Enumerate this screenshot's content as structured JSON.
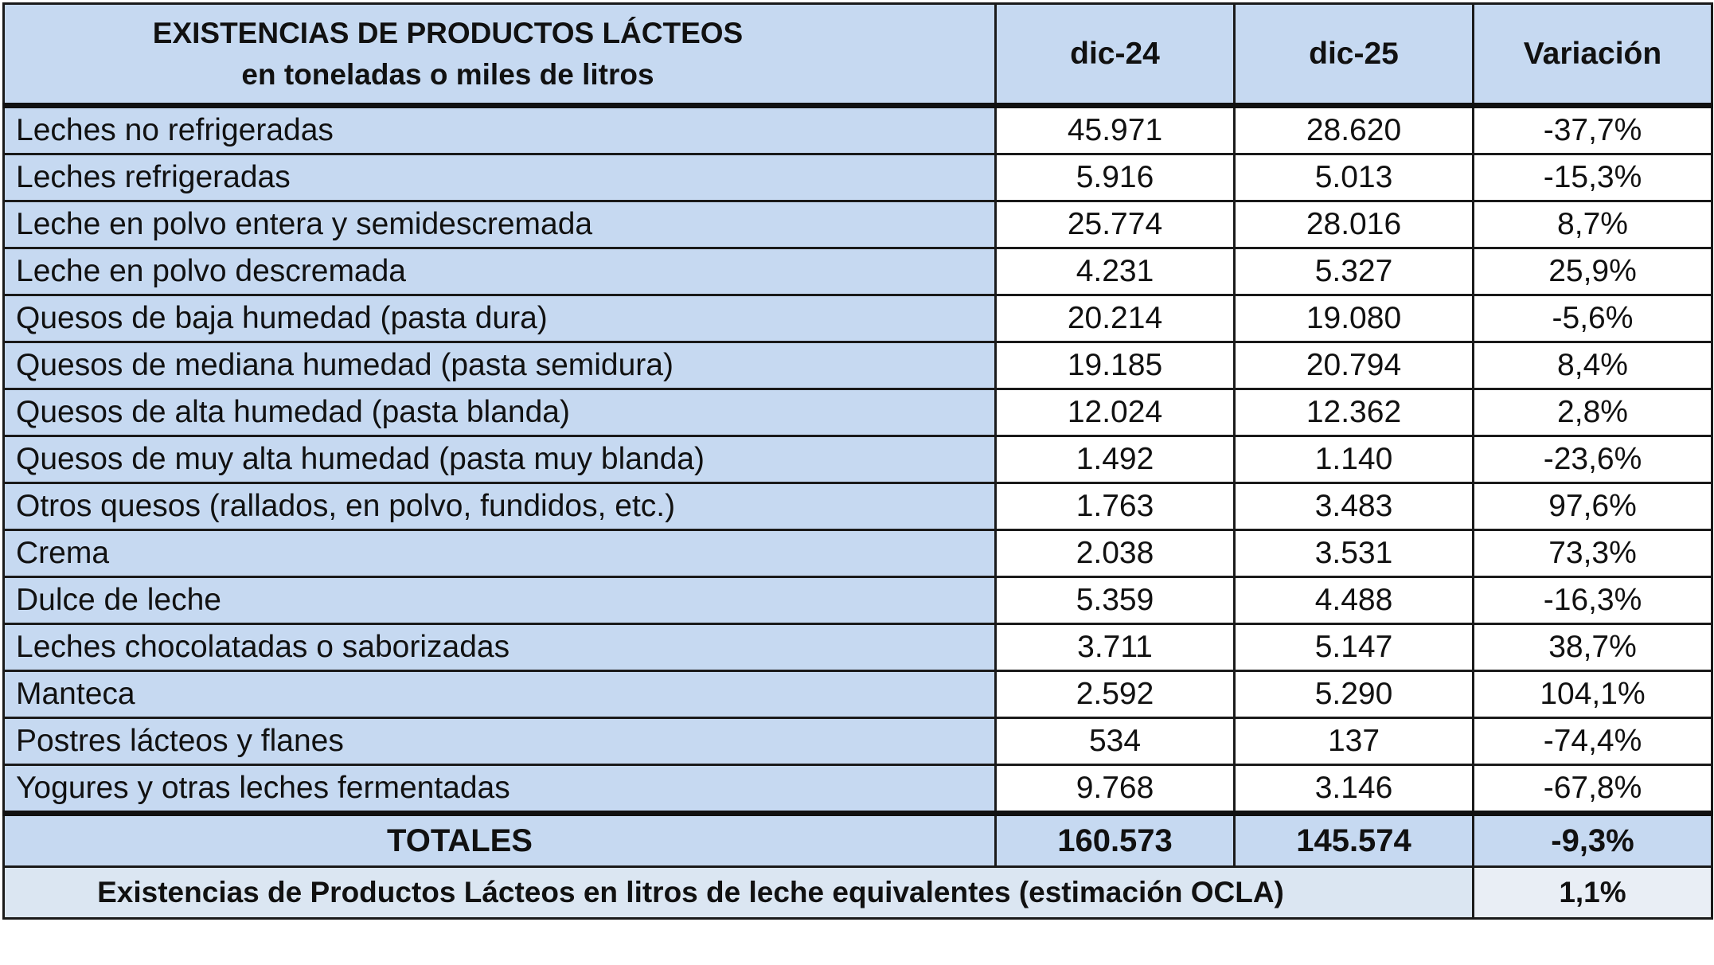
{
  "chart_data": {
    "type": "table",
    "title_line1": "EXISTENCIAS DE PRODUCTOS LÁCTEOS",
    "title_line2": "en toneladas o miles de litros",
    "columns": [
      "dic-24",
      "dic-25",
      "Variación"
    ],
    "rows": [
      {
        "label": "Leches no refrigeradas",
        "dic24": "45.971",
        "dic25": "28.620",
        "var": "-37,7%"
      },
      {
        "label": "Leches refrigeradas",
        "dic24": "5.916",
        "dic25": "5.013",
        "var": "-15,3%"
      },
      {
        "label": "Leche en polvo entera y semidescremada",
        "dic24": "25.774",
        "dic25": "28.016",
        "var": "8,7%"
      },
      {
        "label": "Leche en polvo descremada",
        "dic24": "4.231",
        "dic25": "5.327",
        "var": "25,9%"
      },
      {
        "label": "Quesos de baja humedad (pasta dura)",
        "dic24": "20.214",
        "dic25": "19.080",
        "var": "-5,6%"
      },
      {
        "label": "Quesos de mediana humedad (pasta semidura)",
        "dic24": "19.185",
        "dic25": "20.794",
        "var": "8,4%"
      },
      {
        "label": "Quesos de alta humedad (pasta blanda)",
        "dic24": "12.024",
        "dic25": "12.362",
        "var": "2,8%"
      },
      {
        "label": "Quesos de muy alta humedad (pasta muy blanda)",
        "dic24": "1.492",
        "dic25": "1.140",
        "var": "-23,6%"
      },
      {
        "label": "Otros quesos (rallados, en polvo, fundidos, etc.)",
        "dic24": "1.763",
        "dic25": "3.483",
        "var": "97,6%"
      },
      {
        "label": "Crema",
        "dic24": "2.038",
        "dic25": "3.531",
        "var": "73,3%"
      },
      {
        "label": "Dulce de leche",
        "dic24": "5.359",
        "dic25": "4.488",
        "var": "-16,3%"
      },
      {
        "label": "Leches chocolatadas o saborizadas",
        "dic24": "3.711",
        "dic25": "5.147",
        "var": "38,7%"
      },
      {
        "label": "Manteca",
        "dic24": "2.592",
        "dic25": "5.290",
        "var": "104,1%"
      },
      {
        "label": "Postres lácteos y flanes",
        "dic24": "534",
        "dic25": "137",
        "var": "-74,4%"
      },
      {
        "label": "Yogures y otras leches fermentadas",
        "dic24": "9.768",
        "dic25": "3.146",
        "var": "-67,8%"
      }
    ],
    "totals": {
      "label": "TOTALES",
      "dic24": "160.573",
      "dic25": "145.574",
      "var": "-9,3%"
    },
    "equivalent": {
      "label": "Existencias de Productos Lácteos en litros de leche equivalentes (estimación OCLA)",
      "value": "1,1%"
    }
  }
}
